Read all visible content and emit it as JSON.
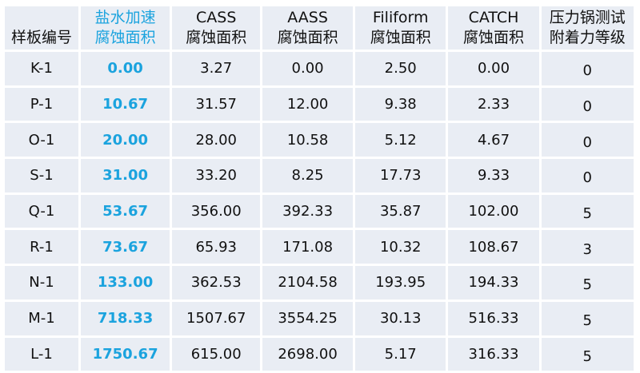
{
  "accent_color": "#1ba3de",
  "headers": [
    [
      "样板编号"
    ],
    [
      "盐水加速",
      "腐蚀面积"
    ],
    [
      "CASS",
      "腐蚀面积"
    ],
    [
      "AASS",
      "腐蚀面积"
    ],
    [
      "Filiform",
      "腐蚀面积"
    ],
    [
      "CATCH",
      "腐蚀面积"
    ],
    [
      "压力锅测试",
      "附着力等级"
    ]
  ],
  "rows": [
    [
      "K-1",
      "0.00",
      "3.27",
      "0.00",
      "2.50",
      "0.00",
      "0"
    ],
    [
      "P-1",
      "10.67",
      "31.57",
      "12.00",
      "9.38",
      "2.33",
      "0"
    ],
    [
      "O-1",
      "20.00",
      "28.00",
      "10.58",
      "5.12",
      "4.67",
      "0"
    ],
    [
      "S-1",
      "31.00",
      "33.20",
      "8.25",
      "17.73",
      "9.33",
      "0"
    ],
    [
      "Q-1",
      "53.67",
      "356.00",
      "392.33",
      "35.87",
      "102.00",
      "5"
    ],
    [
      "R-1",
      "73.67",
      "65.93",
      "171.08",
      "10.32",
      "108.67",
      "3"
    ],
    [
      "N-1",
      "133.00",
      "362.53",
      "2104.58",
      "193.95",
      "194.33",
      "5"
    ],
    [
      "M-1",
      "718.33",
      "1507.67",
      "3554.25",
      "30.13",
      "516.33",
      "5"
    ],
    [
      "L-1",
      "1750.67",
      "615.00",
      "2698.00",
      "5.17",
      "316.33",
      "5"
    ]
  ]
}
